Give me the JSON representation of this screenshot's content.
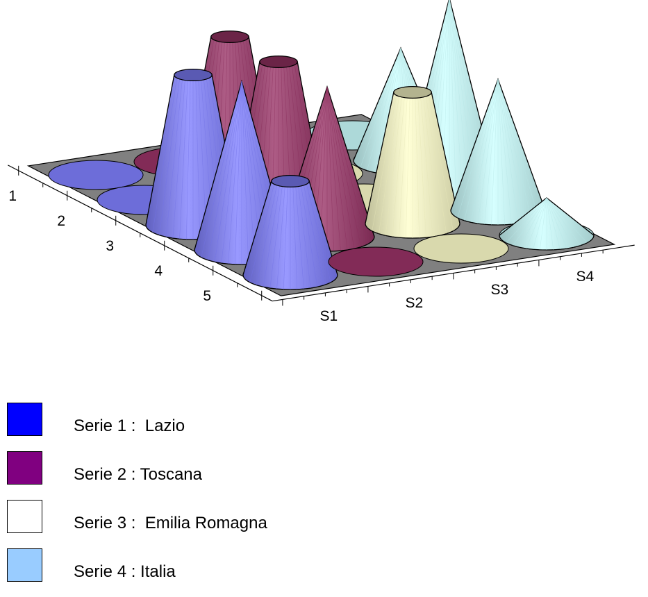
{
  "chart_data": {
    "type": "3d-cone",
    "row_labels": [
      "1",
      "2",
      "3",
      "4",
      "5"
    ],
    "column_labels": [
      "S1",
      "S2",
      "S3",
      "S4"
    ],
    "series": [
      {
        "name": "Serie 1 :  Lazio",
        "color": "#8080ff",
        "legend_color": "#0000ff",
        "values": [
          0,
          0,
          8,
          9,
          5
        ],
        "shape": [
          "none",
          "none",
          "frustum",
          "cone",
          "frustum"
        ]
      },
      {
        "name": "Serie 2 : Toscana",
        "color": "#993366",
        "legend_color": "#800080",
        "values": [
          0,
          8,
          8,
          8,
          0
        ],
        "shape": [
          "none",
          "frustum",
          "frustum",
          "cone",
          "none"
        ]
      },
      {
        "name": "Serie 3 :  Emilia Romagna",
        "color": "#ffffcc",
        "legend_color": "#ffffff",
        "values": [
          0,
          0,
          0,
          7,
          0
        ],
        "shape": [
          "none",
          "none",
          "none",
          "frustum",
          "none"
        ]
      },
      {
        "name": "Serie 4 : Italia",
        "color": "#ccffff",
        "legend_color": "#99ccff",
        "values": [
          0,
          6,
          10,
          7,
          2
        ],
        "shape": [
          "none",
          "cone",
          "cone",
          "cone",
          "cone"
        ]
      }
    ],
    "floor_color": "#808080",
    "grid": false
  }
}
